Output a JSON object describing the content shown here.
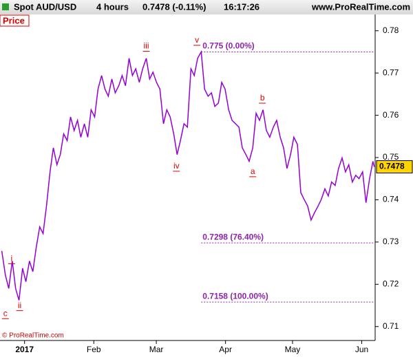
{
  "header": {
    "instrument": "Spot AUD/USD",
    "timeframe": "4 hours",
    "quote": "0.7478 (-0.11%)",
    "time": "16:17:26",
    "site": "www.ProRealTime.com"
  },
  "panel_label": "Price",
  "copyright": "© ProRealTime.com",
  "chart_data": {
    "type": "line",
    "color": "#9400d3",
    "x": [
      -10.2,
      -8.6,
      -7.1,
      -5.5,
      -4.0,
      -2.5,
      -0.9,
      0.6,
      2.2,
      3.7,
      5.2,
      6.8,
      8.3,
      9.8,
      11.4,
      12.9,
      14.5,
      16.0,
      17.5,
      19.1,
      20.6,
      22.2,
      23.7,
      25.2,
      26.8,
      28.3,
      29.8,
      31.4,
      32.9,
      34.5,
      36.0,
      37.5,
      39.1,
      40.6,
      42.2,
      43.7,
      45.2,
      46.8,
      48.3,
      49.8,
      51.4,
      52.9,
      54.5,
      56.0,
      57.5,
      59.1,
      60.6,
      62.2,
      63.7,
      65.2,
      66.8,
      68.3,
      69.8,
      71.4,
      72.9,
      74.5,
      76.0,
      77.5,
      79.1,
      80.6,
      82.2,
      83.7,
      85.2,
      86.8,
      88.3,
      89.8,
      91.4,
      92.9,
      94.5,
      96.0,
      97.5,
      99.1,
      100.6,
      102.2,
      103.7,
      105.2,
      106.8,
      108.3,
      109.8,
      111.4,
      112.9,
      114.5,
      116.0,
      117.5,
      119.1,
      120.6,
      122.2,
      123.7,
      125.2,
      126.8,
      128.3,
      129.8,
      131.4,
      132.9,
      134.5,
      136.0,
      137.5,
      139.1,
      140.6,
      142.2,
      143.7,
      145.2,
      146.8,
      148.3,
      149.8,
      151.4,
      152.9,
      154.5,
      156.0,
      156.6
    ],
    "values": [
      0.7279,
      0.7222,
      0.719,
      0.7255,
      0.719,
      0.7162,
      0.7238,
      0.7206,
      0.7255,
      0.723,
      0.7287,
      0.7336,
      0.732,
      0.7385,
      0.7466,
      0.7523,
      0.7483,
      0.7507,
      0.7556,
      0.754,
      0.7596,
      0.7564,
      0.7588,
      0.7548,
      0.758,
      0.7548,
      0.7613,
      0.7596,
      0.7662,
      0.7694,
      0.7662,
      0.7645,
      0.7686,
      0.7653,
      0.767,
      0.7694,
      0.767,
      0.7735,
      0.7694,
      0.771,
      0.7678,
      0.771,
      0.7735,
      0.7686,
      0.7702,
      0.7678,
      0.7662,
      0.758,
      0.7613,
      0.7596,
      0.7556,
      0.7507,
      0.754,
      0.758,
      0.7572,
      0.771,
      0.7694,
      0.7735,
      0.775,
      0.7662,
      0.7645,
      0.7653,
      0.7621,
      0.7629,
      0.7678,
      0.7662,
      0.7613,
      0.7588,
      0.758,
      0.7572,
      0.7523,
      0.7507,
      0.7491,
      0.7523,
      0.7605,
      0.7588,
      0.7613,
      0.7564,
      0.7548,
      0.7572,
      0.7588,
      0.7548,
      0.7523,
      0.7474,
      0.7507,
      0.7548,
      0.7531,
      0.7417,
      0.7401,
      0.7385,
      0.7352,
      0.7369,
      0.7385,
      0.7401,
      0.7426,
      0.7409,
      0.7442,
      0.7434,
      0.7474,
      0.7499,
      0.7466,
      0.7483,
      0.7442,
      0.7458,
      0.745,
      0.7466,
      0.7393,
      0.745,
      0.7491,
      0.7478
    ],
    "xlim": [
      -11,
      157
    ],
    "xticks": [
      {
        "value": 0,
        "label": "2017"
      },
      {
        "value": 31,
        "label": "Feb"
      },
      {
        "value": 59,
        "label": "Mar"
      },
      {
        "value": 90,
        "label": "Apr"
      },
      {
        "value": 120,
        "label": "May"
      },
      {
        "value": 151,
        "label": "Jun"
      }
    ],
    "ylim": [
      0.7067,
      0.7837
    ],
    "yticks": [
      0.71,
      0.72,
      0.73,
      0.74,
      0.75,
      0.76,
      0.77,
      0.78
    ],
    "last_price": 0.7478,
    "levels": [
      {
        "value": 0.775,
        "label": "0.775 (0.00%)",
        "start": 79.1
      },
      {
        "value": 0.7298,
        "label": "0.7298 (76.40%)",
        "start": 79.1
      },
      {
        "value": 0.7158,
        "label": "0.7158 (100.00%)",
        "start": 79.1
      }
    ],
    "annotations": [
      {
        "text": "c",
        "x": -8.6,
        "y": 0.713
      },
      {
        "text": "i",
        "x": -5.8,
        "y": 0.726
      },
      {
        "text": "ii",
        "x": -2.2,
        "y": 0.7149
      },
      {
        "text": "iii",
        "x": 54.5,
        "y": 0.7763
      },
      {
        "text": "iv",
        "x": 68.0,
        "y": 0.7479
      },
      {
        "text": "v",
        "x": 77.2,
        "y": 0.7777
      },
      {
        "text": "a",
        "x": 102.2,
        "y": 0.7466
      },
      {
        "text": "b",
        "x": 106.5,
        "y": 0.764
      }
    ]
  }
}
